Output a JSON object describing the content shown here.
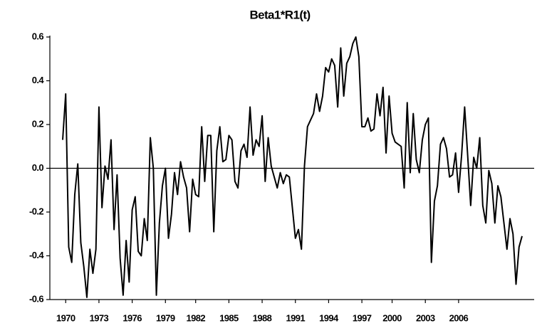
{
  "chart_data": {
    "type": "line",
    "title": "Beta1*R1(t)",
    "color": "#000000",
    "categories": [
      null,
      "1970",
      null,
      null,
      null,
      null,
      null,
      null,
      null,
      null,
      null,
      null,
      "1973",
      null,
      null,
      null,
      null,
      null,
      null,
      null,
      null,
      null,
      null,
      "1976",
      null,
      null,
      null,
      null,
      null,
      null,
      null,
      null,
      null,
      null,
      "1979",
      null,
      null,
      null,
      null,
      null,
      null,
      null,
      null,
      null,
      "1982",
      null,
      null,
      null,
      null,
      null,
      null,
      null,
      null,
      null,
      null,
      "1985",
      null,
      null,
      null,
      null,
      null,
      null,
      null,
      null,
      null,
      null,
      "1988",
      null,
      null,
      null,
      null,
      null,
      null,
      null,
      null,
      null,
      null,
      "1991",
      null,
      null,
      null,
      null,
      null,
      null,
      null,
      null,
      null,
      null,
      "1994",
      null,
      null,
      null,
      null,
      null,
      null,
      null,
      null,
      null,
      null,
      "1997",
      null,
      null,
      null,
      null,
      null,
      null,
      null,
      null,
      null,
      "2000",
      null,
      null,
      null,
      null,
      null,
      null,
      null,
      null,
      null,
      null,
      "2003",
      null,
      null,
      null,
      null,
      null,
      null,
      null,
      null,
      null,
      null,
      "2006",
      null,
      null,
      null,
      null,
      null,
      null,
      null,
      null,
      null,
      null,
      null,
      null,
      null,
      null,
      null,
      null,
      null,
      null,
      null,
      null,
      null
    ],
    "values": [
      0.13,
      0.34,
      -0.36,
      -0.43,
      -0.12,
      0.02,
      -0.34,
      -0.45,
      -0.59,
      -0.37,
      -0.48,
      -0.37,
      0.28,
      -0.18,
      0.01,
      -0.05,
      0.13,
      -0.28,
      -0.03,
      -0.41,
      -0.58,
      -0.33,
      -0.52,
      -0.19,
      -0.13,
      -0.38,
      -0.4,
      -0.23,
      -0.33,
      0.14,
      0.0,
      -0.58,
      -0.25,
      -0.08,
      0.0,
      -0.32,
      -0.21,
      -0.02,
      -0.12,
      0.03,
      -0.04,
      -0.09,
      -0.29,
      -0.05,
      -0.12,
      -0.13,
      0.19,
      -0.06,
      0.15,
      0.15,
      -0.29,
      0.08,
      0.19,
      0.03,
      0.04,
      0.15,
      0.13,
      -0.06,
      -0.09,
      0.08,
      0.11,
      0.05,
      0.28,
      0.06,
      0.13,
      0.1,
      0.24,
      -0.06,
      0.14,
      0.01,
      -0.04,
      -0.09,
      -0.02,
      -0.07,
      -0.03,
      -0.04,
      -0.18,
      -0.32,
      -0.28,
      -0.37,
      0.01,
      0.19,
      0.22,
      0.25,
      0.34,
      0.26,
      0.33,
      0.46,
      0.44,
      0.5,
      0.47,
      0.28,
      0.55,
      0.33,
      0.48,
      0.51,
      0.57,
      0.6,
      0.51,
      0.19,
      0.19,
      0.23,
      0.17,
      0.18,
      0.34,
      0.24,
      0.37,
      0.07,
      0.33,
      0.16,
      0.12,
      0.11,
      0.1,
      -0.09,
      0.3,
      -0.02,
      0.25,
      0.04,
      -0.02,
      0.13,
      0.2,
      0.23,
      -0.43,
      -0.15,
      -0.08,
      0.11,
      0.14,
      0.09,
      -0.04,
      -0.03,
      0.07,
      -0.11,
      0.06,
      0.28,
      0.06,
      -0.17,
      0.05,
      0.0,
      0.14,
      -0.17,
      -0.25,
      -0.01,
      -0.07,
      -0.25,
      -0.08,
      -0.13,
      -0.25,
      -0.37,
      -0.23,
      -0.3,
      -0.53,
      -0.36,
      -0.31
    ],
    "ylim": [
      -0.6,
      0.6
    ],
    "yticks": [
      -0.6,
      -0.4,
      -0.2,
      {
        "value": 0,
        "label": "0.0"
      },
      0.2,
      0.4,
      0.6
    ],
    "zero_line": true
  }
}
